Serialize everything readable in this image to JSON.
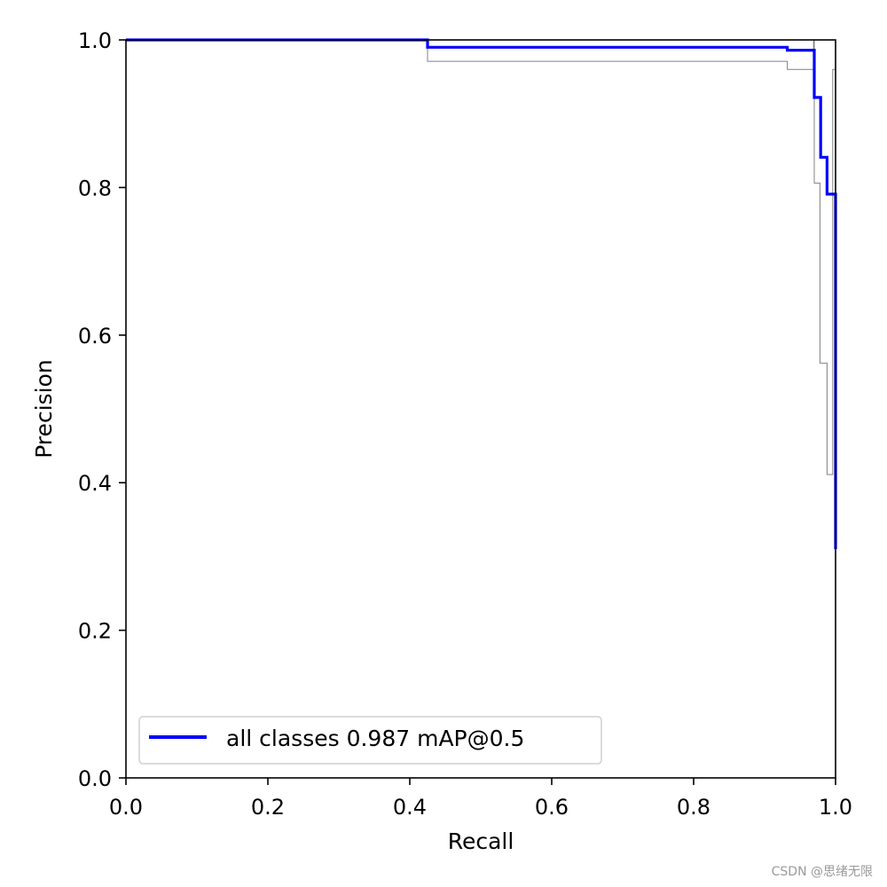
{
  "chart_data": {
    "type": "line",
    "xlabel": "Recall",
    "ylabel": "Precision",
    "xlim": [
      0.0,
      1.0
    ],
    "ylim": [
      0.0,
      1.0
    ],
    "xticks": [
      0.0,
      0.2,
      0.4,
      0.6,
      0.8,
      1.0
    ],
    "yticks": [
      0.0,
      0.2,
      0.4,
      0.6,
      0.8,
      1.0
    ],
    "xtick_labels": [
      "0.0",
      "0.2",
      "0.4",
      "0.6",
      "0.8",
      "1.0"
    ],
    "ytick_labels": [
      "0.0",
      "0.2",
      "0.4",
      "0.6",
      "0.8",
      "1.0"
    ],
    "grid": false,
    "legend_position": "lower-left",
    "series": [
      {
        "name": "",
        "color": "#808080",
        "x": [
          0.0,
          0.425,
          0.425,
          0.932,
          0.932,
          0.969,
          0.969,
          0.97,
          0.97,
          0.978,
          0.978,
          0.988,
          0.988,
          0.996,
          0.996,
          1.0,
          1.0
        ],
        "y": [
          1.0,
          1.0,
          0.971,
          0.971,
          0.96,
          0.96,
          1.0,
          1.0,
          0.806,
          0.806,
          0.562,
          0.562,
          0.411,
          0.411,
          0.96,
          0.96,
          0.31
        ]
      },
      {
        "name": "all classes 0.987 mAP@0.5",
        "color": "#0000ff",
        "x": [
          0.0,
          0.425,
          0.425,
          0.932,
          0.932,
          0.97,
          0.97,
          0.979,
          0.979,
          0.988,
          0.988,
          0.993,
          0.993,
          1.0,
          1.0
        ],
        "y": [
          1.0,
          1.0,
          0.99,
          0.99,
          0.986,
          0.986,
          0.922,
          0.922,
          0.841,
          0.841,
          0.791,
          0.791,
          0.791,
          0.791,
          0.31
        ]
      }
    ]
  },
  "watermark": "CSDN @思绪无限"
}
